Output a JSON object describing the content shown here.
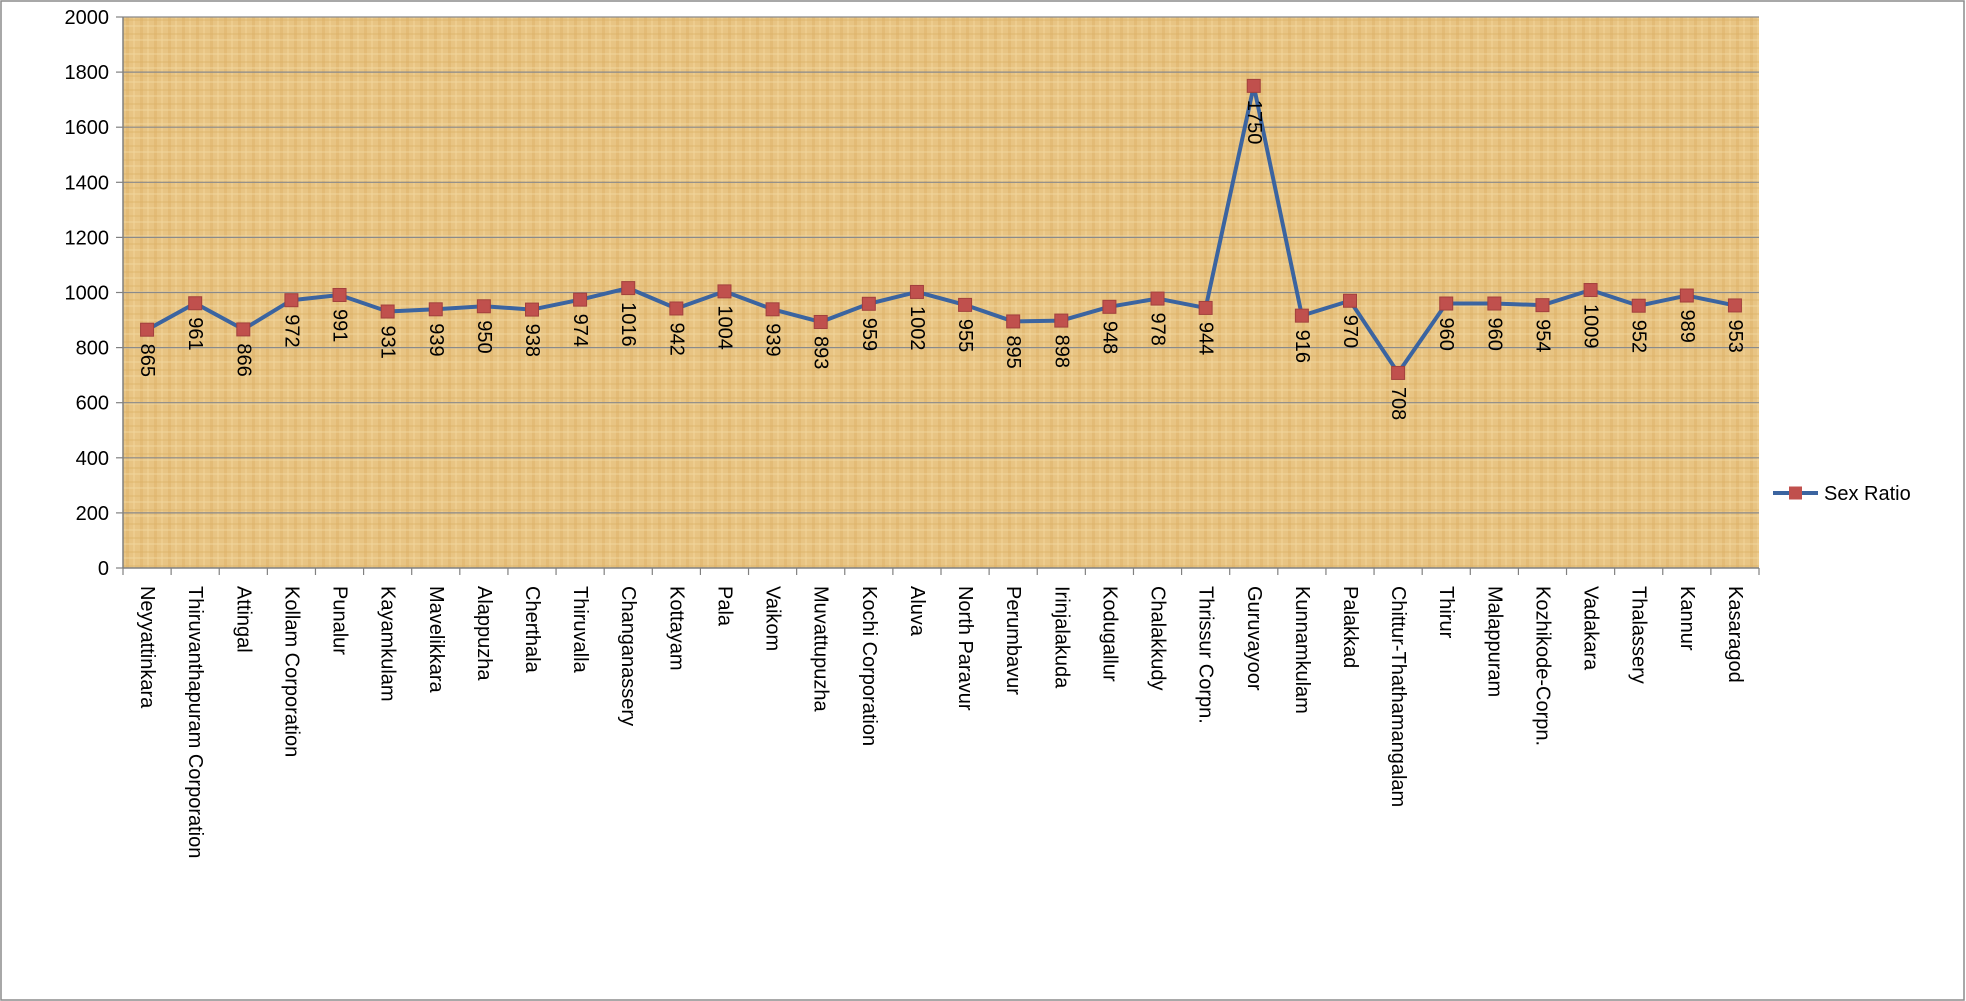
{
  "chart_data": {
    "type": "line",
    "title": "",
    "xlabel": "",
    "ylabel": "",
    "ylim": [
      0,
      2000
    ],
    "yticks": [
      0,
      200,
      400,
      600,
      800,
      1000,
      1200,
      1400,
      1600,
      1800,
      2000
    ],
    "grid": true,
    "legend_position": "right",
    "colors": {
      "line": "#3b64a0",
      "marker": "#c0504d",
      "plot_bg": "#e8c483",
      "grid": "#8a8a8a"
    },
    "categories": [
      "Neyyattinkara",
      "Thiruvanthapuram Corporation",
      "Attingal",
      "Kollam Corporation",
      "Punalur",
      "Kayamkulam",
      "Mavelikkara",
      "Alappuzha",
      "Cherthala",
      "Thiruvalla",
      "Changanassery",
      "Kottayam",
      "Pala",
      "Vaikom",
      "Muvattupuzha",
      "Kochi Corporation",
      "Aluva",
      "North Paravur",
      "Perumbavur",
      "Irinjalakuda",
      "Kodugallur",
      "Chalakkudy",
      "Thrissur Corpn.",
      "Guruvayoor",
      "Kunnamkulam",
      "Palakkad",
      "Chittur-Thathamangalam",
      "Thirur",
      "Malappuram",
      "Kozhikode-Corpn.",
      "Vadakara",
      "Thalassery",
      "Kannur",
      "Kasaragod"
    ],
    "series": [
      {
        "name": "Sex Ratio",
        "values": [
          865,
          961,
          866,
          972,
          991,
          931,
          939,
          950,
          938,
          974,
          1016,
          942,
          1004,
          939,
          893,
          959,
          1002,
          955,
          895,
          898,
          948,
          978,
          944,
          1750,
          916,
          970,
          708,
          960,
          960,
          954,
          1009,
          952,
          989,
          953
        ]
      }
    ]
  }
}
